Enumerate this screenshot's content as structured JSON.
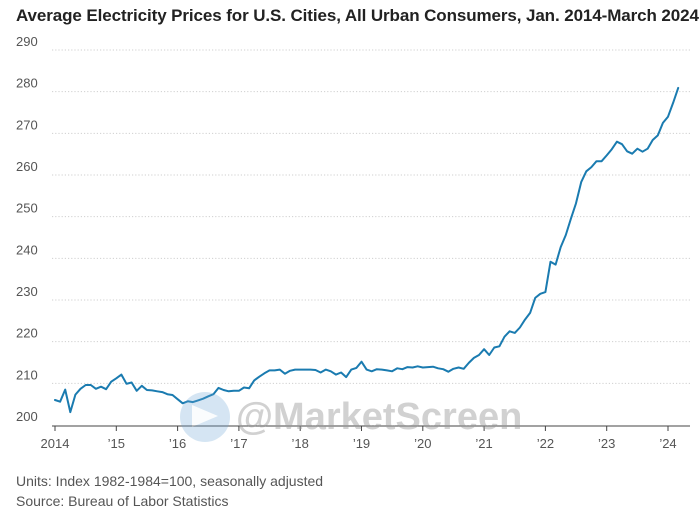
{
  "title": "Average Electricity Prices for U.S. Cities, All Urban Consumers, Jan. 2014-March 2024",
  "footer": {
    "units": "Units: Index 1982-1984=100, seasonally adjusted",
    "source": "Source: Bureau of Labor Statistics"
  },
  "watermark": {
    "text": "@MarketScreen",
    "icon": "telegram-icon"
  },
  "colors": {
    "line": "#1a7bb0",
    "grid": "#cfcfcf",
    "axis": "#444444",
    "text": "#555555"
  },
  "chart_data": {
    "type": "line",
    "title": "Average Electricity Prices for U.S. Cities, All Urban Consumers, Jan. 2014-March 2024",
    "xlabel": "",
    "ylabel": "",
    "ylim": [
      200,
      290
    ],
    "xlim": [
      "2014-01",
      "2024-03"
    ],
    "yticks": [
      200,
      210,
      220,
      230,
      240,
      250,
      260,
      270,
      280,
      290
    ],
    "xticks": [
      {
        "date": "2014-01",
        "label": "2014"
      },
      {
        "date": "2015-01",
        "label": "’15"
      },
      {
        "date": "2016-01",
        "label": "’16"
      },
      {
        "date": "2017-01",
        "label": "’17"
      },
      {
        "date": "2018-01",
        "label": "’18"
      },
      {
        "date": "2019-01",
        "label": "’19"
      },
      {
        "date": "2020-01",
        "label": "’20"
      },
      {
        "date": "2021-01",
        "label": "’21"
      },
      {
        "date": "2022-01",
        "label": "’22"
      },
      {
        "date": "2023-01",
        "label": "’23"
      },
      {
        "date": "2024-01",
        "label": "’24"
      }
    ],
    "grid": "horizontal",
    "legend": "none",
    "series": [
      {
        "x": [
          "2014-01",
          "2014-02",
          "2014-03",
          "2014-04",
          "2014-05",
          "2014-06",
          "2014-07",
          "2014-08",
          "2014-09",
          "2014-10",
          "2014-11",
          "2014-12",
          "2015-01",
          "2015-02",
          "2015-03",
          "2015-04",
          "2015-05",
          "2015-06",
          "2015-07",
          "2015-08",
          "2015-09",
          "2015-10",
          "2015-11",
          "2015-12",
          "2016-01",
          "2016-02",
          "2016-03",
          "2016-04",
          "2016-05",
          "2016-06",
          "2016-07",
          "2016-08",
          "2016-09",
          "2016-10",
          "2016-11",
          "2016-12",
          "2017-01",
          "2017-02",
          "2017-03",
          "2017-04",
          "2017-05",
          "2017-06",
          "2017-07",
          "2017-08",
          "2017-09",
          "2017-10",
          "2017-11",
          "2017-12",
          "2018-01",
          "2018-02",
          "2018-03",
          "2018-04",
          "2018-05",
          "2018-06",
          "2018-07",
          "2018-08",
          "2018-09",
          "2018-10",
          "2018-11",
          "2018-12",
          "2019-01",
          "2019-02",
          "2019-03",
          "2019-04",
          "2019-05",
          "2019-06",
          "2019-07",
          "2019-08",
          "2019-09",
          "2019-10",
          "2019-11",
          "2019-12",
          "2020-01",
          "2020-02",
          "2020-03",
          "2020-04",
          "2020-05",
          "2020-06",
          "2020-07",
          "2020-08",
          "2020-09",
          "2020-10",
          "2020-11",
          "2020-12",
          "2021-01",
          "2021-02",
          "2021-03",
          "2021-04",
          "2021-05",
          "2021-06",
          "2021-07",
          "2021-08",
          "2021-09",
          "2021-10",
          "2021-11",
          "2021-12",
          "2022-01",
          "2022-02",
          "2022-03",
          "2022-04",
          "2022-05",
          "2022-06",
          "2022-07",
          "2022-08",
          "2022-09",
          "2022-10",
          "2022-11",
          "2022-12",
          "2023-01",
          "2023-02",
          "2023-03",
          "2023-04",
          "2023-05",
          "2023-06",
          "2023-07",
          "2023-08",
          "2023-09",
          "2023-10",
          "2023-11",
          "2023-12",
          "2024-01",
          "2024-02",
          "2024-03"
        ],
        "values": [
          206.0,
          205.6,
          208.5,
          203.1,
          207.3,
          208.7,
          209.6,
          209.6,
          208.7,
          209.2,
          208.6,
          210.4,
          211.2,
          212.1,
          209.9,
          210.2,
          208.2,
          209.4,
          208.4,
          208.3,
          208.1,
          207.9,
          207.4,
          207.2,
          206.2,
          205.2,
          205.7,
          205.5,
          205.9,
          206.3,
          206.9,
          207.4,
          208.9,
          208.4,
          208.1,
          208.2,
          208.2,
          209.0,
          208.8,
          210.7,
          211.6,
          212.4,
          213.1,
          213.1,
          213.3,
          212.3,
          213.0,
          213.3,
          213.3,
          213.3,
          213.3,
          213.2,
          212.6,
          213.3,
          212.9,
          212.1,
          212.6,
          211.5,
          213.3,
          213.7,
          215.2,
          213.3,
          212.9,
          213.4,
          213.3,
          213.1,
          212.9,
          213.6,
          213.4,
          213.9,
          213.8,
          214.1,
          213.8,
          213.9,
          214.0,
          213.6,
          213.4,
          212.8,
          213.5,
          213.8,
          213.5,
          214.9,
          216.1,
          216.8,
          218.2,
          216.8,
          218.6,
          218.9,
          221.2,
          222.5,
          222.1,
          223.4,
          225.3,
          226.9,
          230.5,
          231.5,
          231.9,
          239.2,
          238.5,
          242.7,
          245.6,
          249.5,
          253.2,
          258.3,
          260.9,
          261.9,
          263.3,
          263.3,
          264.7,
          266.2,
          268.0,
          267.4,
          265.7,
          265.1,
          266.3,
          265.6,
          266.3,
          268.4,
          269.5,
          272.5,
          274.0,
          277.3,
          280.9
        ]
      }
    ]
  }
}
